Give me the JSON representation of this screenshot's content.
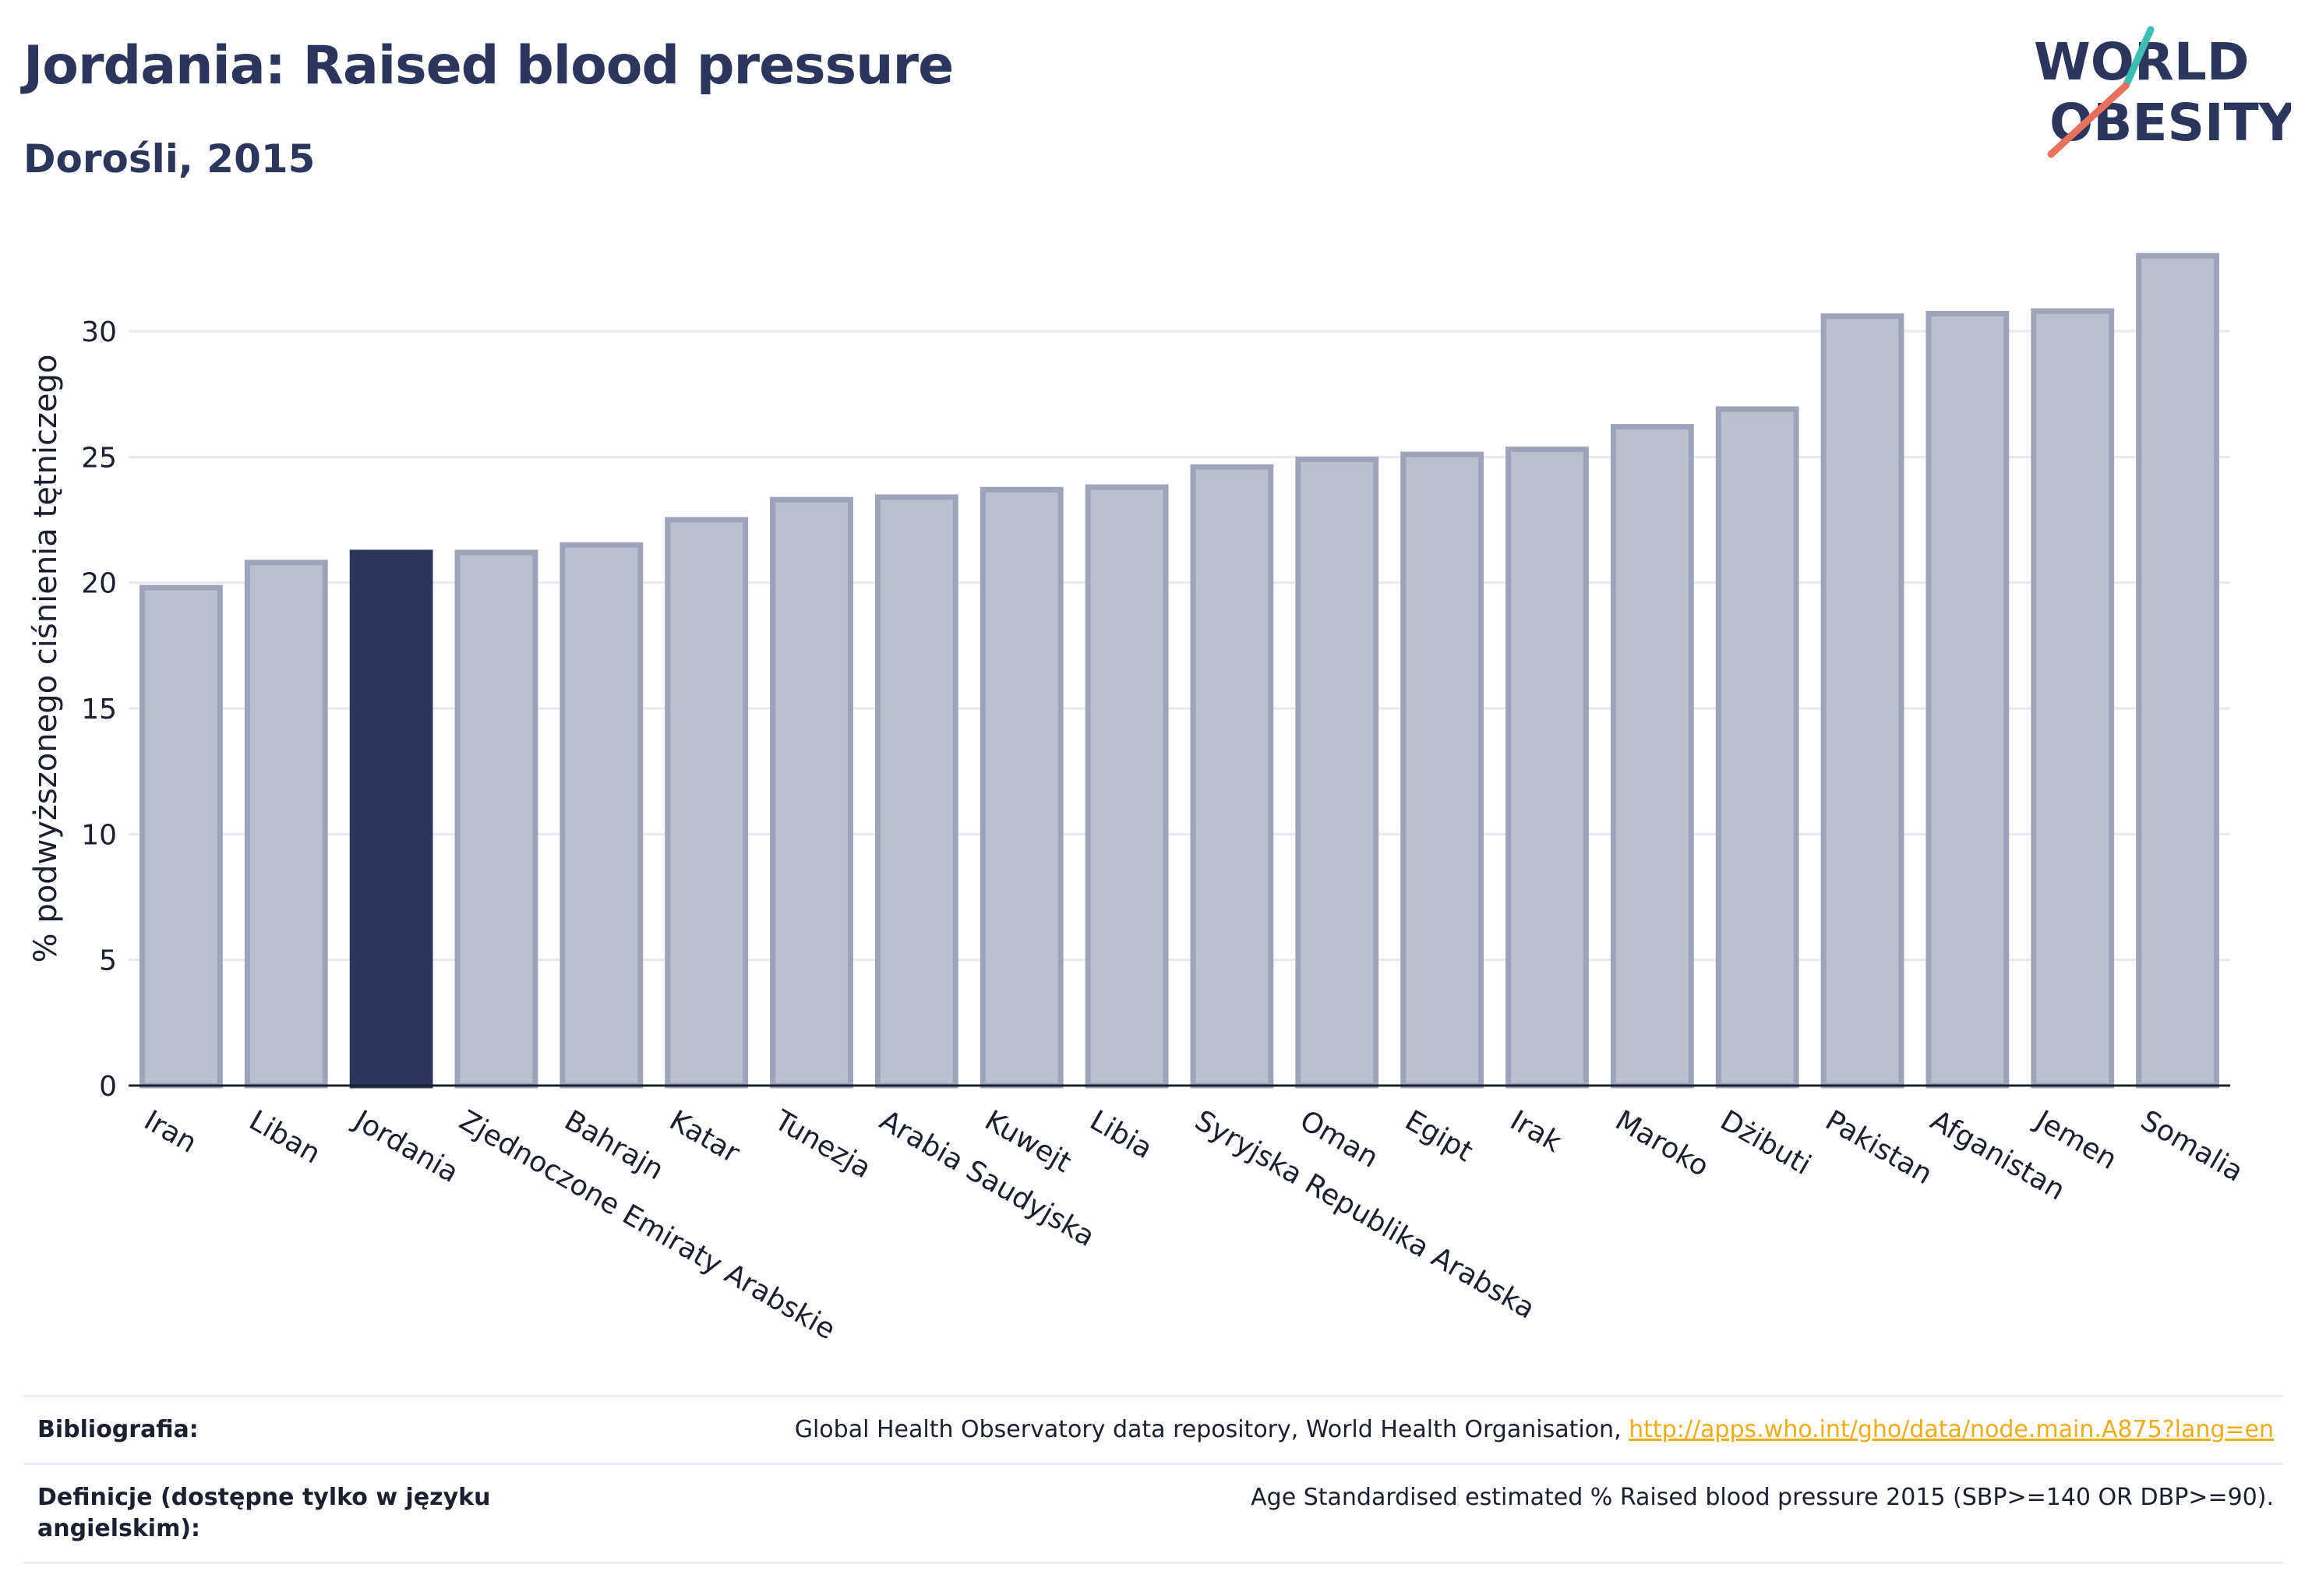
{
  "header": {
    "title": "Jordania: Raised blood pressure",
    "subtitle": "Dorośli, 2015",
    "logo_top": "WORLD",
    "logo_bottom": "OBESITY"
  },
  "chart_data": {
    "type": "bar",
    "title": "Jordania: Raised blood pressure",
    "subtitle": "Dorośli, 2015",
    "xlabel": "",
    "ylabel": "% podwyższonego ciśnienia tętniczego",
    "ylim": [
      0,
      33.5
    ],
    "yticks": [
      0,
      5,
      10,
      15,
      20,
      25,
      30
    ],
    "grid": true,
    "highlight": "Jordania",
    "categories": [
      "Iran",
      "Liban",
      "Jordania",
      "Zjednoczone Emiraty Arabskie",
      "Bahrajn",
      "Katar",
      "Tunezja",
      "Arabia Saudyjska",
      "Kuwejt",
      "Libia",
      "Syryjska Republika Arabska",
      "Oman",
      "Egipt",
      "Irak",
      "Maroko",
      "Dżibuti",
      "Pakistan",
      "Afganistan",
      "Jemen",
      "Somalia"
    ],
    "values": [
      19.8,
      20.8,
      21.2,
      21.2,
      21.5,
      22.5,
      23.3,
      23.4,
      23.7,
      23.8,
      24.6,
      24.9,
      25.1,
      25.3,
      26.2,
      26.9,
      30.6,
      30.7,
      30.8,
      33.0
    ],
    "colors": {
      "default_fill": "#bcc0cd",
      "default_stroke": "#9da3b9",
      "highlight_fill": "#2b355e",
      "grid": "#e8e9ee",
      "axis": "#1b1f2e"
    }
  },
  "footer": {
    "bibliography_label": "Bibliografia:",
    "bibliography_text": "Global Health Observatory data repository, World Health Organisation, ",
    "bibliography_link": "http://apps.who.int/gho/data/node.main.A875?lang=en",
    "definitions_label": "Definicje (dostępne tylko w języku angielskim):",
    "definitions_text": "Age Standardised estimated % Raised blood pressure 2015 (SBP>=140 OR DBP>=90)."
  },
  "colors": {
    "brand": "#2b355e",
    "logo_teal": "#3bbfb5",
    "logo_coral": "#e8705c",
    "link": "#f0ac16"
  }
}
